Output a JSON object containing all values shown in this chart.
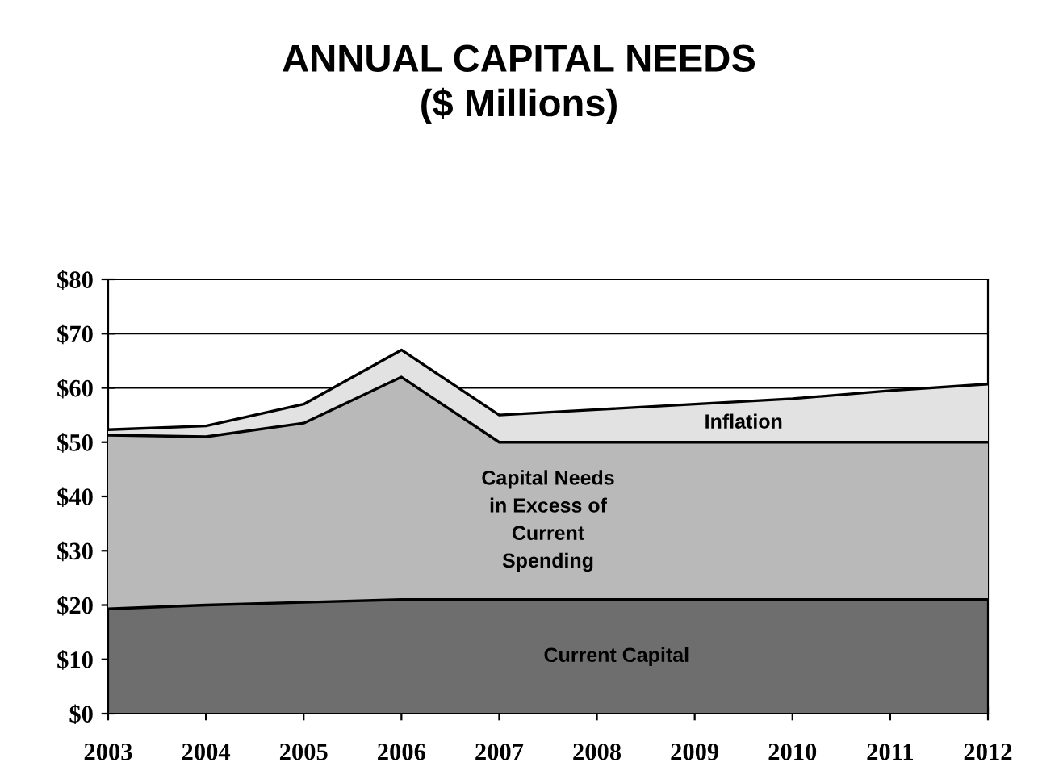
{
  "chart_data": {
    "type": "area",
    "title": "ANNUAL CAPITAL NEEDS\n($ Millions)",
    "stacked": true,
    "grid": "y",
    "categories": [
      "2003",
      "2004",
      "2005",
      "2006",
      "2007",
      "2008",
      "2009",
      "2010",
      "2011",
      "2012"
    ],
    "series": [
      {
        "name": "Current Capital",
        "color": "#6e6e6e",
        "values": [
          19.3,
          20,
          20.5,
          21,
          21,
          21,
          21,
          21,
          21,
          21
        ]
      },
      {
        "name": "Capital Needs\nin Excess of\nCurrent\nSpending",
        "color": "#b9b9b9",
        "values": [
          32,
          31,
          33,
          41,
          29,
          29,
          29,
          29,
          29,
          29
        ]
      },
      {
        "name": "Inflation",
        "color": "#e2e2e2",
        "values": [
          1,
          2,
          3.5,
          5,
          5,
          6,
          7,
          8,
          9.5,
          10.7
        ]
      }
    ],
    "ylim": [
      0,
      80
    ],
    "yticks": [
      {
        "value": 0,
        "label": "$0"
      },
      {
        "value": 10,
        "label": "$10"
      },
      {
        "value": 20,
        "label": "$20"
      },
      {
        "value": 30,
        "label": "$30"
      },
      {
        "value": 40,
        "label": "$40"
      },
      {
        "value": 50,
        "label": "$50"
      },
      {
        "value": 60,
        "label": "$60"
      },
      {
        "value": 70,
        "label": "$70"
      },
      {
        "value": 80,
        "label": "$80"
      }
    ]
  }
}
